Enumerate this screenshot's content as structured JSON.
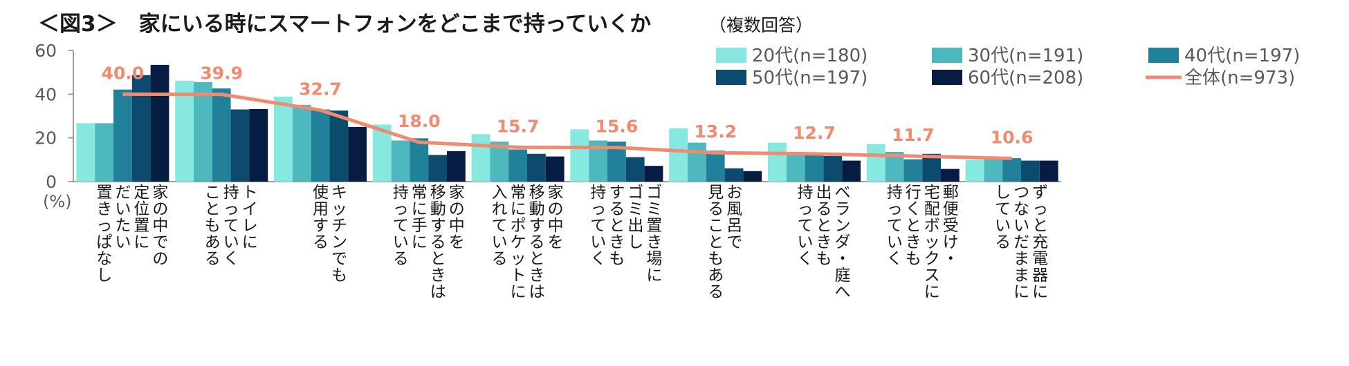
{
  "title": "＜図3＞　家にいる時にスマートフォンをどこまで持っていくか",
  "subtitle": "（複数回答）",
  "chart_data": {
    "type": "bar",
    "y_unit_label": "(%)",
    "ylim": [
      0,
      60
    ],
    "yticks": [
      0,
      20,
      40,
      60
    ],
    "grid": false,
    "legend_position": "top-right",
    "categories": [
      "家の中での定位置にだいたい置きっぱなし",
      "トイレに持っていくこともある",
      "キッチンでも使用する",
      "家の中を移動するときは常に手に持っている",
      "家の中を移動するときは常にポケットに入れている",
      "ゴミ置き場にゴミ出しするときも持っていく",
      "お風呂で見ることもある",
      "ベランダ・庭へ出るときも持っていく",
      "郵便受け・宅配ボックスに行くときも持っていく",
      "ずっと充電器につないだままにしている"
    ],
    "category_columns": [
      [
        "家の中での",
        "定位置に",
        "だいたい",
        "置きっぱなし"
      ],
      [
        "トイレに",
        "持っていく",
        "こともある"
      ],
      [
        "キッチンでも",
        "使用する"
      ],
      [
        "家の中を",
        "移動するときは",
        "常に手に",
        "持っている"
      ],
      [
        "家の中を",
        "移動するときは",
        "常にポケットに",
        "入れている"
      ],
      [
        "ゴミ置き場に",
        "ゴミ出し",
        "するときも",
        "持っていく"
      ],
      [
        "お風呂で",
        "見ることもある"
      ],
      [
        "ベランダ・庭へ",
        "出るときも",
        "持っていく"
      ],
      [
        "郵便受け・",
        "宅配ボックスに",
        "行くときも",
        "持っていく"
      ],
      [
        "ずっと充電器に",
        "つないだままに",
        "している"
      ]
    ],
    "series": [
      {
        "name": "20代(n=180)",
        "type": "bar",
        "color": "#86e8df",
        "values": [
          26.7,
          46.1,
          38.9,
          26.1,
          21.7,
          23.9,
          24.4,
          17.8,
          17.2,
          10.0
        ]
      },
      {
        "name": "30代(n=191)",
        "type": "bar",
        "color": "#4db9bf",
        "values": [
          26.7,
          45.5,
          35.1,
          18.8,
          18.3,
          18.8,
          17.8,
          13.1,
          13.6,
          11.0
        ]
      },
      {
        "name": "40代(n=197)",
        "type": "bar",
        "color": "#21809a",
        "values": [
          42.1,
          42.6,
          33.0,
          19.8,
          14.7,
          18.3,
          14.2,
          12.7,
          10.2,
          10.7
        ]
      },
      {
        "name": "50代(n=197)",
        "type": "bar",
        "color": "#0c4a6e",
        "values": [
          48.7,
          33.0,
          32.5,
          12.2,
          12.7,
          11.2,
          6.1,
          11.7,
          12.7,
          9.6
        ]
      },
      {
        "name": "60代(n=208)",
        "type": "bar",
        "color": "#061c42",
        "values": [
          53.4,
          33.2,
          25.0,
          13.9,
          11.5,
          7.2,
          4.8,
          9.6,
          5.8,
          9.6
        ]
      },
      {
        "name": "全体(n=973)",
        "type": "line",
        "color": "#f08a70",
        "values": [
          40.0,
          39.9,
          32.7,
          18.0,
          15.7,
          15.6,
          13.2,
          12.7,
          11.7,
          10.6
        ],
        "labels": [
          "40.0",
          "39.9",
          "32.7",
          "18.0",
          "15.7",
          "15.6",
          "13.2",
          "12.7",
          "11.7",
          "10.6"
        ]
      }
    ]
  }
}
